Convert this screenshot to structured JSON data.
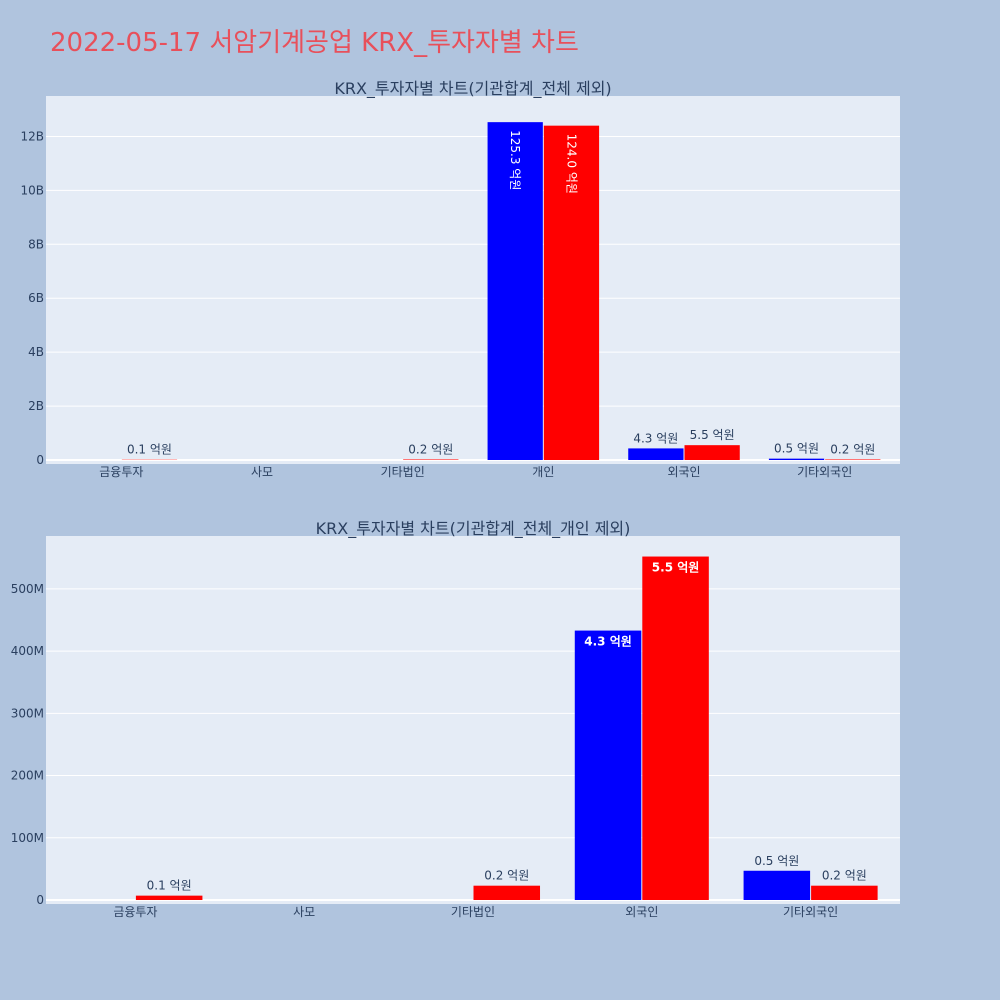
{
  "page": {
    "title": "2022-05-17 서암기계공업 KRX_투자자별 차트"
  },
  "colors": {
    "series_a": "#0000ff",
    "series_b": "#ff0000",
    "plot_bg": "#e5ecf6",
    "page_bg": "#b0c4de",
    "title": "#e8505b"
  },
  "chart_data": [
    {
      "type": "bar",
      "title": "KRX_투자자별 차트(기관합계_전체 제외)",
      "categories": [
        "금융투자",
        "사모",
        "기타법인",
        "개인",
        "외국인",
        "기타외국인"
      ],
      "ylim": [
        0,
        13500000000
      ],
      "yticks": [
        0,
        2000000000,
        4000000000,
        6000000000,
        8000000000,
        10000000000,
        12000000000
      ],
      "ytick_labels": [
        "0",
        "2B",
        "4B",
        "6B",
        "8B",
        "10B",
        "12B"
      ],
      "grid": true,
      "series": [
        {
          "values": [
            0,
            0,
            0,
            12530000000,
            430000000,
            50000000
          ],
          "labels": [
            "",
            "",
            "",
            "125.3 억원",
            "4.3 억원",
            "0.5 억원"
          ]
        },
        {
          "values": [
            10000000,
            0,
            20000000,
            12400000000,
            550000000,
            20000000
          ],
          "labels": [
            "0.1 억원",
            "",
            "0.2 억원",
            "124.0 억원",
            "5.5 억원",
            "0.2 억원"
          ]
        }
      ]
    },
    {
      "type": "bar",
      "title": "KRX_투자자별 차트(기관합계_전체_개인 제외)",
      "categories": [
        "금융투자",
        "사모",
        "기타법인",
        "외국인",
        "기타외국인"
      ],
      "ylim": [
        0,
        585000000
      ],
      "yticks": [
        0,
        100000000,
        200000000,
        300000000,
        400000000,
        500000000
      ],
      "ytick_labels": [
        "0",
        "100M",
        "200M",
        "300M",
        "400M",
        "500M"
      ],
      "grid": true,
      "series": [
        {
          "values": [
            0,
            0,
            0,
            433000000,
            47000000
          ],
          "labels": [
            "",
            "",
            "",
            "4.3 억원",
            "0.5 억원"
          ]
        },
        {
          "values": [
            7000000,
            0,
            23000000,
            552000000,
            23000000
          ],
          "labels": [
            "0.1 억원",
            "",
            "0.2 억원",
            "5.5 억원",
            "0.2 억원"
          ]
        }
      ]
    }
  ]
}
